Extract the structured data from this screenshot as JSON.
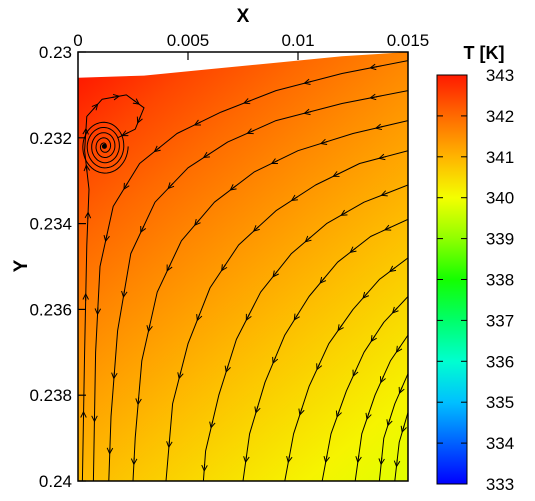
{
  "chart_data": {
    "type": "heatmap",
    "title": "",
    "xlabel": "X",
    "ylabel": "Y",
    "xlim": [
      0,
      0.015
    ],
    "ylim": [
      0.23,
      0.24
    ],
    "y_axis_inverted": true,
    "x_ticks": [
      {
        "value": 0,
        "label": "0"
      },
      {
        "value": 0.005,
        "label": "0.005"
      },
      {
        "value": 0.01,
        "label": "0.01"
      },
      {
        "value": 0.015,
        "label": "0.015"
      }
    ],
    "y_ticks": [
      {
        "value": 0.23,
        "label": "0.23"
      },
      {
        "value": 0.232,
        "label": "0.232"
      },
      {
        "value": 0.234,
        "label": "0.234"
      },
      {
        "value": 0.236,
        "label": "0.236"
      },
      {
        "value": 0.238,
        "label": "0.238"
      },
      {
        "value": 0.24,
        "label": "0.24"
      }
    ],
    "colorbar": {
      "title": "T [K]",
      "range": [
        333,
        343
      ],
      "ticks": [
        {
          "value": 343,
          "label": "343"
        },
        {
          "value": 342,
          "label": "342"
        },
        {
          "value": 341,
          "label": "341"
        },
        {
          "value": 340,
          "label": "340"
        },
        {
          "value": 339,
          "label": "339"
        },
        {
          "value": 338,
          "label": "338"
        },
        {
          "value": 337,
          "label": "337"
        },
        {
          "value": 336,
          "label": "336"
        },
        {
          "value": 335,
          "label": "335"
        },
        {
          "value": 334,
          "label": "334"
        },
        {
          "value": 333,
          "label": "333"
        }
      ],
      "stops": [
        {
          "value": 343,
          "color": "#ff1a00"
        },
        {
          "value": 342,
          "color": "#ff6a00"
        },
        {
          "value": 341,
          "color": "#ffb400"
        },
        {
          "value": 340,
          "color": "#f4ff00"
        },
        {
          "value": 339,
          "color": "#90ff00"
        },
        {
          "value": 338,
          "color": "#14ff00"
        },
        {
          "value": 337,
          "color": "#00ff6a"
        },
        {
          "value": 336,
          "color": "#00ffd0"
        },
        {
          "value": 335,
          "color": "#00c0ff"
        },
        {
          "value": 334,
          "color": "#0060ff"
        },
        {
          "value": 333,
          "color": "#0000ff"
        }
      ]
    },
    "temperature_field": {
      "hot_corner_T": 343,
      "cold_corner_T": 339.8,
      "hot_corner": [
        0,
        0.2306
      ],
      "cold_corner": [
        0.015,
        0.24
      ]
    },
    "free_surface": [
      [
        0,
        0.2306
      ],
      [
        0.003,
        0.23055
      ],
      [
        0.006,
        0.2304
      ],
      [
        0.009,
        0.23025
      ],
      [
        0.012,
        0.2301
      ],
      [
        0.015,
        0.23
      ]
    ],
    "vortex": {
      "x": 0.0012,
      "y": 0.2322
    },
    "streamlines": [
      {
        "points": [
          [
            0.015,
            0.2302
          ],
          [
            0.012,
            0.2305
          ],
          [
            0.009,
            0.2309
          ],
          [
            0.0065,
            0.2314
          ],
          [
            0.0045,
            0.2319
          ],
          [
            0.0028,
            0.2326
          ],
          [
            0.0016,
            0.2336
          ],
          [
            0.001,
            0.235
          ],
          [
            0.0008,
            0.237
          ],
          [
            0.0007,
            0.24
          ]
        ]
      },
      {
        "points": [
          [
            0.015,
            0.2309
          ],
          [
            0.012,
            0.2312
          ],
          [
            0.009,
            0.2316
          ],
          [
            0.0068,
            0.2321
          ],
          [
            0.005,
            0.2327
          ],
          [
            0.0035,
            0.2335
          ],
          [
            0.0024,
            0.2347
          ],
          [
            0.0018,
            0.2365
          ],
          [
            0.0015,
            0.2385
          ],
          [
            0.0014,
            0.24
          ]
        ]
      },
      {
        "points": [
          [
            0.015,
            0.2316
          ],
          [
            0.0125,
            0.2319
          ],
          [
            0.01,
            0.2323
          ],
          [
            0.008,
            0.2328
          ],
          [
            0.0062,
            0.2335
          ],
          [
            0.0047,
            0.2344
          ],
          [
            0.0036,
            0.2356
          ],
          [
            0.0029,
            0.2372
          ],
          [
            0.0026,
            0.239
          ],
          [
            0.0025,
            0.24
          ]
        ]
      },
      {
        "points": [
          [
            0.015,
            0.2323
          ],
          [
            0.0128,
            0.2326
          ],
          [
            0.0108,
            0.2331
          ],
          [
            0.009,
            0.2337
          ],
          [
            0.0073,
            0.2345
          ],
          [
            0.006,
            0.2355
          ],
          [
            0.005,
            0.2368
          ],
          [
            0.0043,
            0.2382
          ],
          [
            0.004,
            0.24
          ]
        ]
      },
      {
        "points": [
          [
            0.015,
            0.2331
          ],
          [
            0.013,
            0.2335
          ],
          [
            0.0113,
            0.234
          ],
          [
            0.0097,
            0.2347
          ],
          [
            0.0083,
            0.2356
          ],
          [
            0.0072,
            0.2367
          ],
          [
            0.0064,
            0.238
          ],
          [
            0.0058,
            0.2393
          ],
          [
            0.0057,
            0.24
          ]
        ]
      },
      {
        "points": [
          [
            0.015,
            0.2339
          ],
          [
            0.0133,
            0.2343
          ],
          [
            0.0118,
            0.2349
          ],
          [
            0.0105,
            0.2357
          ],
          [
            0.0094,
            0.2366
          ],
          [
            0.0085,
            0.2377
          ],
          [
            0.0078,
            0.2389
          ],
          [
            0.0075,
            0.24
          ]
        ]
      },
      {
        "points": [
          [
            0.015,
            0.2348
          ],
          [
            0.0137,
            0.2353
          ],
          [
            0.0125,
            0.236
          ],
          [
            0.0114,
            0.2368
          ],
          [
            0.0105,
            0.2378
          ],
          [
            0.0098,
            0.2389
          ],
          [
            0.0094,
            0.24
          ]
        ]
      },
      {
        "points": [
          [
            0.015,
            0.2357
          ],
          [
            0.0139,
            0.2363
          ],
          [
            0.013,
            0.237
          ],
          [
            0.0122,
            0.2379
          ],
          [
            0.0115,
            0.2389
          ],
          [
            0.0111,
            0.24
          ]
        ]
      },
      {
        "points": [
          [
            0.015,
            0.2366
          ],
          [
            0.0142,
            0.2372
          ],
          [
            0.0135,
            0.238
          ],
          [
            0.0129,
            0.2389
          ],
          [
            0.0126,
            0.24
          ]
        ]
      },
      {
        "points": [
          [
            0.015,
            0.2375
          ],
          [
            0.0144,
            0.2382
          ],
          [
            0.0139,
            0.239
          ],
          [
            0.0137,
            0.24
          ]
        ]
      },
      {
        "points": [
          [
            0.015,
            0.2384
          ],
          [
            0.0146,
            0.2391
          ],
          [
            0.0144,
            0.24
          ]
        ]
      },
      {
        "points": [
          [
            0.0002,
            0.24
          ],
          [
            0.0003,
            0.237
          ],
          [
            0.0004,
            0.2345
          ],
          [
            0.0005,
            0.2332
          ],
          [
            0.0003,
            0.2323
          ],
          [
            0.0004,
            0.2315
          ],
          [
            0.0011,
            0.2311
          ],
          [
            0.0022,
            0.231
          ],
          [
            0.003,
            0.2313
          ],
          [
            0.0026,
            0.2318
          ],
          [
            0.0018,
            0.232
          ]
        ]
      }
    ]
  }
}
